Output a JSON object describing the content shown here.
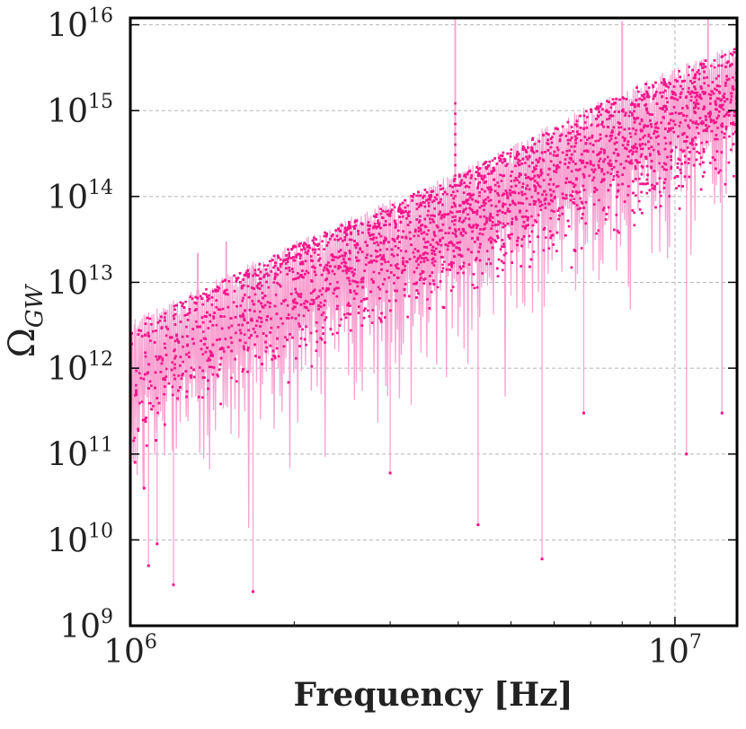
{
  "chart_data": {
    "type": "scatter",
    "title": "",
    "xlabel": "Frequency [Hz]",
    "ylabel_main": "Ω",
    "ylabel_sub": "GW",
    "xscale": "log",
    "yscale": "log",
    "xlim": [
      1000000,
      13000000
    ],
    "ylim": [
      1000000000.0,
      1.2e+16
    ],
    "grid": true,
    "x_ticks": [
      {
        "value": 1000000,
        "base": "10",
        "exp": "6"
      },
      {
        "value": 10000000,
        "base": "10",
        "exp": "7"
      }
    ],
    "y_ticks": [
      {
        "value": 1000000000.0,
        "base": "10",
        "exp": "9"
      },
      {
        "value": 10000000000.0,
        "base": "10",
        "exp": "10"
      },
      {
        "value": 100000000000.0,
        "base": "10",
        "exp": "11"
      },
      {
        "value": 1000000000000.0,
        "base": "10",
        "exp": "12"
      },
      {
        "value": 10000000000000.0,
        "base": "10",
        "exp": "13"
      },
      {
        "value": 100000000000000.0,
        "base": "10",
        "exp": "14"
      },
      {
        "value": 1000000000000000.0,
        "base": "10",
        "exp": "15"
      },
      {
        "value": 1e+16,
        "base": "10",
        "exp": "16"
      }
    ],
    "series": [
      {
        "style": "line",
        "color": "#f9a3d2",
        "x": [
          1000000,
          2000000,
          4000000,
          8000000,
          13000000
        ],
        "y": [
          3500000000000.0,
          30000000000000.0,
          200000000000000.0,
          1800000000000000.0,
          6000000000000000.0
        ]
      },
      {
        "style": "points",
        "color": "#f5158a",
        "x": [
          1000000,
          2000000,
          4000000,
          8000000,
          13000000
        ],
        "y": [
          1000000000000.0,
          10000000000000.0,
          60000000000000.0,
          400000000000000.0,
          1500000000000000.0
        ]
      }
    ],
    "spikes": [
      {
        "x": 3950000,
        "y": 1.2e+16
      },
      {
        "x": 8000000,
        "y": 1.1e+16
      },
      {
        "x": 11500000,
        "y": 1.2e+16
      },
      {
        "x": 1330000,
        "y": 22000000000000.0
      },
      {
        "x": 1500000,
        "y": 30000000000000.0
      }
    ],
    "dips": [
      {
        "x": 1020000,
        "y": 80000000000.0
      },
      {
        "x": 1060000,
        "y": 40000000000.0
      },
      {
        "x": 1080000,
        "y": 5000000000.0
      },
      {
        "x": 1120000,
        "y": 9000000000.0
      },
      {
        "x": 1200000,
        "y": 3000000000.0
      },
      {
        "x": 1680000,
        "y": 2500000000.0
      },
      {
        "x": 3000000,
        "y": 60000000000.0
      },
      {
        "x": 4350000,
        "y": 15000000000.0
      },
      {
        "x": 5700000,
        "y": 6000000000.0
      },
      {
        "x": 6800000,
        "y": 300000000000.0
      },
      {
        "x": 10500000,
        "y": 100000000000.0
      },
      {
        "x": 12200000,
        "y": 300000000000.0
      }
    ]
  }
}
